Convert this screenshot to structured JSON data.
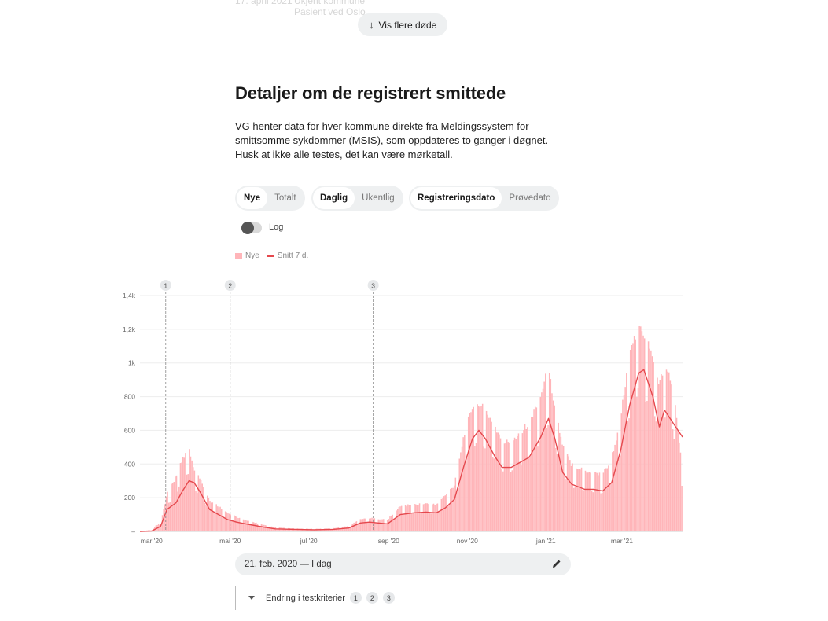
{
  "faded_row": {
    "date": "17. april 2021",
    "place": "Ukjent kommune",
    "sub": "Pasient ved Oslo..."
  },
  "show_more_label": "Vis flere døde",
  "section_title": "Detaljer om de registrert smittede",
  "description": "VG henter data for hver kommune direkte fra Meldingssystem for smittsomme sykdommer (MSIS), som oppdateres to ganger i døgnet. Husk at ikke alle testes, det kan være mørketall.",
  "segments": [
    {
      "options": [
        {
          "label": "Nye",
          "active": true
        },
        {
          "label": "Totalt",
          "active": false
        }
      ]
    },
    {
      "options": [
        {
          "label": "Daglig",
          "active": true
        },
        {
          "label": "Ukentlig",
          "active": false
        }
      ]
    },
    {
      "options": [
        {
          "label": "Registreringsdato",
          "active": true
        },
        {
          "label": "Prøvedato",
          "active": false
        }
      ]
    }
  ],
  "log_label": "Log",
  "legend": {
    "bars": "Nye",
    "line": "Snitt 7 d."
  },
  "colors": {
    "bar": "#ffb5b9",
    "line": "#e5484d",
    "grid": "#ededed",
    "marker": "#8a8a8a"
  },
  "chart_data": {
    "type": "bar",
    "y_ticks": [
      "–",
      "200",
      "400",
      "600",
      "800",
      "1k",
      "1,2k",
      "1,4k"
    ],
    "y_tick_values": [
      0,
      200,
      400,
      600,
      800,
      1000,
      1200,
      1400
    ],
    "ylim": [
      0,
      1400
    ],
    "x_start": "2020-02-21",
    "x_end": "2021-04-17",
    "x_ticks": [
      {
        "label": "mar '20",
        "date": "2020-03-01"
      },
      {
        "label": "mai '20",
        "date": "2020-05-01"
      },
      {
        "label": "jul '20",
        "date": "2020-07-01"
      },
      {
        "label": "sep '20",
        "date": "2020-09-01"
      },
      {
        "label": "nov '20",
        "date": "2020-11-01"
      },
      {
        "label": "jan '21",
        "date": "2021-01-01"
      },
      {
        "label": "mar '21",
        "date": "2021-03-01"
      }
    ],
    "markers": [
      {
        "label": "1",
        "date": "2020-03-12"
      },
      {
        "label": "2",
        "date": "2020-05-01"
      },
      {
        "label": "3",
        "date": "2020-08-20"
      }
    ],
    "series": [
      {
        "name": "Snitt 7 d.",
        "type": "line",
        "points": [
          [
            "2020-02-21",
            0
          ],
          [
            "2020-03-01",
            2
          ],
          [
            "2020-03-08",
            30
          ],
          [
            "2020-03-13",
            130
          ],
          [
            "2020-03-20",
            170
          ],
          [
            "2020-03-25",
            240
          ],
          [
            "2020-03-30",
            300
          ],
          [
            "2020-04-03",
            290
          ],
          [
            "2020-04-08",
            230
          ],
          [
            "2020-04-15",
            130
          ],
          [
            "2020-04-22",
            100
          ],
          [
            "2020-04-29",
            70
          ],
          [
            "2020-05-06",
            55
          ],
          [
            "2020-05-13",
            45
          ],
          [
            "2020-05-20",
            35
          ],
          [
            "2020-05-27",
            25
          ],
          [
            "2020-06-05",
            15
          ],
          [
            "2020-06-20",
            12
          ],
          [
            "2020-07-05",
            10
          ],
          [
            "2020-07-20",
            12
          ],
          [
            "2020-08-01",
            20
          ],
          [
            "2020-08-10",
            50
          ],
          [
            "2020-08-17",
            55
          ],
          [
            "2020-08-24",
            50
          ],
          [
            "2020-08-31",
            45
          ],
          [
            "2020-09-10",
            100
          ],
          [
            "2020-09-20",
            110
          ],
          [
            "2020-09-30",
            115
          ],
          [
            "2020-10-08",
            110
          ],
          [
            "2020-10-15",
            140
          ],
          [
            "2020-10-22",
            190
          ],
          [
            "2020-10-29",
            380
          ],
          [
            "2020-11-05",
            550
          ],
          [
            "2020-11-10",
            600
          ],
          [
            "2020-11-15",
            550
          ],
          [
            "2020-11-22",
            450
          ],
          [
            "2020-11-28",
            380
          ],
          [
            "2020-12-05",
            380
          ],
          [
            "2020-12-12",
            410
          ],
          [
            "2020-12-19",
            440
          ],
          [
            "2020-12-28",
            560
          ],
          [
            "2021-01-03",
            670
          ],
          [
            "2021-01-08",
            550
          ],
          [
            "2021-01-14",
            350
          ],
          [
            "2021-01-21",
            280
          ],
          [
            "2021-01-31",
            250
          ],
          [
            "2021-02-07",
            250
          ],
          [
            "2021-02-14",
            240
          ],
          [
            "2021-02-21",
            290
          ],
          [
            "2021-02-28",
            480
          ],
          [
            "2021-03-07",
            750
          ],
          [
            "2021-03-14",
            940
          ],
          [
            "2021-03-18",
            960
          ],
          [
            "2021-03-25",
            800
          ],
          [
            "2021-03-30",
            620
          ],
          [
            "2021-04-03",
            720
          ],
          [
            "2021-04-10",
            640
          ],
          [
            "2021-04-17",
            560
          ]
        ]
      },
      {
        "name": "Nye",
        "type": "bar",
        "points": [
          [
            "2020-02-21",
            0
          ],
          [
            "2020-03-01",
            10
          ],
          [
            "2020-03-08",
            60
          ],
          [
            "2020-03-13",
            220
          ],
          [
            "2020-03-20",
            300
          ],
          [
            "2020-03-25",
            420
          ],
          [
            "2020-03-30",
            460
          ],
          [
            "2020-04-03",
            340
          ],
          [
            "2020-04-08",
            290
          ],
          [
            "2020-04-15",
            170
          ],
          [
            "2020-04-22",
            140
          ],
          [
            "2020-04-29",
            100
          ],
          [
            "2020-05-06",
            80
          ],
          [
            "2020-05-13",
            60
          ],
          [
            "2020-05-20",
            50
          ],
          [
            "2020-05-27",
            35
          ],
          [
            "2020-06-05",
            22
          ],
          [
            "2020-06-20",
            16
          ],
          [
            "2020-07-05",
            14
          ],
          [
            "2020-07-20",
            18
          ],
          [
            "2020-08-01",
            30
          ],
          [
            "2020-08-10",
            70
          ],
          [
            "2020-08-17",
            75
          ],
          [
            "2020-08-24",
            70
          ],
          [
            "2020-08-31",
            65
          ],
          [
            "2020-09-10",
            140
          ],
          [
            "2020-09-20",
            150
          ],
          [
            "2020-09-30",
            155
          ],
          [
            "2020-10-08",
            150
          ],
          [
            "2020-10-15",
            200
          ],
          [
            "2020-10-22",
            260
          ],
          [
            "2020-10-29",
            520
          ],
          [
            "2020-11-05",
            700
          ],
          [
            "2020-11-10",
            720
          ],
          [
            "2020-11-15",
            680
          ],
          [
            "2020-11-22",
            600
          ],
          [
            "2020-11-28",
            500
          ],
          [
            "2020-12-05",
            500
          ],
          [
            "2020-12-12",
            560
          ],
          [
            "2020-12-19",
            600
          ],
          [
            "2020-12-28",
            760
          ],
          [
            "2021-01-03",
            900
          ],
          [
            "2021-01-08",
            720
          ],
          [
            "2021-01-14",
            480
          ],
          [
            "2021-01-21",
            380
          ],
          [
            "2021-01-31",
            340
          ],
          [
            "2021-02-07",
            330
          ],
          [
            "2021-02-14",
            320
          ],
          [
            "2021-02-21",
            400
          ],
          [
            "2021-02-28",
            620
          ],
          [
            "2021-03-07",
            960
          ],
          [
            "2021-03-14",
            1150
          ],
          [
            "2021-03-18",
            1110
          ],
          [
            "2021-03-25",
            1000
          ],
          [
            "2021-03-30",
            820
          ],
          [
            "2021-04-03",
            930
          ],
          [
            "2021-04-10",
            830
          ],
          [
            "2021-04-17",
            370
          ]
        ]
      }
    ]
  },
  "date_range_label": "21. feb. 2020 — I dag",
  "criteria": {
    "label": "Endring i testkriterier",
    "badges": [
      "1",
      "2",
      "3"
    ]
  }
}
